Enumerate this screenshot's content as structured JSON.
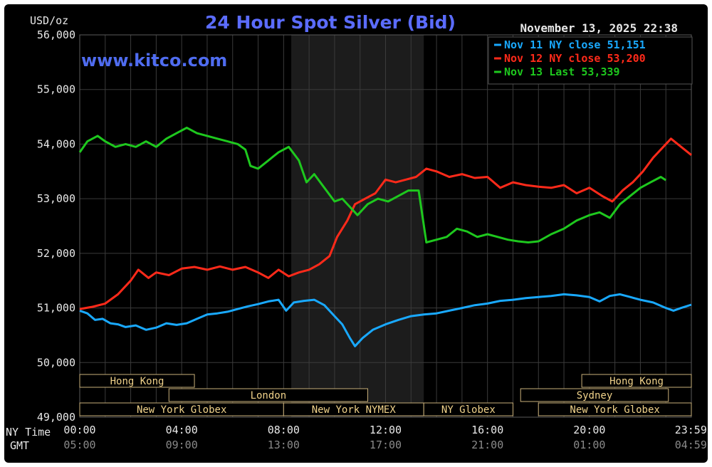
{
  "chart_data": {
    "type": "line",
    "title": "24 Hour Spot Silver (Bid)",
    "ylabel": "USD/oz",
    "watermark": "www.kitco.com",
    "timestamp": "November 13, 2025 22:38",
    "ylim": [
      49000,
      56000
    ],
    "yticks": [
      {
        "value": 49000,
        "label": "49,000"
      },
      {
        "value": 50000,
        "label": "50,000"
      },
      {
        "value": 51000,
        "label": "51,000"
      },
      {
        "value": 52000,
        "label": "52,000"
      },
      {
        "value": 53000,
        "label": "53,000"
      },
      {
        "value": 54000,
        "label": "54,000"
      },
      {
        "value": 55000,
        "label": "55,000"
      },
      {
        "value": 56000,
        "label": "56,000"
      }
    ],
    "xlim": [
      0,
      24
    ],
    "xticks": [
      {
        "hour": 0,
        "ny": "00:00",
        "gmt": "05:00"
      },
      {
        "hour": 4,
        "ny": "04:00",
        "gmt": "09:00"
      },
      {
        "hour": 8,
        "ny": "08:00",
        "gmt": "13:00"
      },
      {
        "hour": 12,
        "ny": "12:00",
        "gmt": "17:00"
      },
      {
        "hour": 16,
        "ny": "16:00",
        "gmt": "21:00"
      },
      {
        "hour": 20,
        "ny": "20:00",
        "gmt": "01:00"
      },
      {
        "hour": 23.98,
        "ny": "23:59",
        "gmt": "04:59"
      }
    ],
    "row_labels": {
      "ny": "NY Time",
      "gmt": "GMT"
    },
    "shaded_hours": [
      8.3,
      13.5
    ],
    "legend_position": "top-right",
    "sessions": [
      {
        "label": "Hong Kong",
        "start": 0,
        "end": 4.5,
        "row": 0
      },
      {
        "label": "Hong Kong",
        "start": 19.7,
        "end": 24,
        "row": 0
      },
      {
        "label": "London",
        "start": 3.5,
        "end": 11.3,
        "row": 1
      },
      {
        "label": "Sydney",
        "start": 17.3,
        "end": 23.1,
        "row": 1
      },
      {
        "label": "New York Globex",
        "start": 0,
        "end": 8.0,
        "row": 2
      },
      {
        "label": "New York NYMEX",
        "start": 8.0,
        "end": 13.5,
        "row": 2
      },
      {
        "label": "NY Globex",
        "start": 13.5,
        "end": 17.0,
        "row": 2
      },
      {
        "label": "New York Globex",
        "start": 18.0,
        "end": 24,
        "row": 2
      }
    ],
    "series": [
      {
        "name": "Nov 11 NY close 51,151",
        "color": "#19a9ff",
        "points": [
          [
            0,
            50950
          ],
          [
            0.3,
            50900
          ],
          [
            0.6,
            50780
          ],
          [
            0.9,
            50800
          ],
          [
            1.2,
            50720
          ],
          [
            1.5,
            50700
          ],
          [
            1.8,
            50650
          ],
          [
            2.2,
            50680
          ],
          [
            2.6,
            50600
          ],
          [
            3.0,
            50640
          ],
          [
            3.4,
            50720
          ],
          [
            3.8,
            50690
          ],
          [
            4.2,
            50720
          ],
          [
            4.6,
            50800
          ],
          [
            5.0,
            50880
          ],
          [
            5.4,
            50900
          ],
          [
            5.8,
            50930
          ],
          [
            6.2,
            50980
          ],
          [
            6.6,
            51030
          ],
          [
            7.0,
            51070
          ],
          [
            7.4,
            51120
          ],
          [
            7.8,
            51150
          ],
          [
            8.1,
            50950
          ],
          [
            8.4,
            51100
          ],
          [
            8.8,
            51130
          ],
          [
            9.2,
            51150
          ],
          [
            9.6,
            51050
          ],
          [
            10.0,
            50850
          ],
          [
            10.3,
            50700
          ],
          [
            10.6,
            50450
          ],
          [
            10.8,
            50300
          ],
          [
            11.1,
            50450
          ],
          [
            11.5,
            50600
          ],
          [
            12.0,
            50700
          ],
          [
            12.5,
            50780
          ],
          [
            13.0,
            50850
          ],
          [
            13.5,
            50880
          ],
          [
            14.0,
            50900
          ],
          [
            14.5,
            50950
          ],
          [
            15.0,
            51000
          ],
          [
            15.5,
            51050
          ],
          [
            16.0,
            51080
          ],
          [
            16.5,
            51130
          ],
          [
            17.0,
            51150
          ],
          [
            17.5,
            51180
          ],
          [
            18.0,
            51200
          ],
          [
            18.5,
            51220
          ],
          [
            19.0,
            51250
          ],
          [
            19.5,
            51230
          ],
          [
            20.0,
            51200
          ],
          [
            20.4,
            51120
          ],
          [
            20.8,
            51220
          ],
          [
            21.2,
            51250
          ],
          [
            21.6,
            51200
          ],
          [
            22.0,
            51150
          ],
          [
            22.5,
            51100
          ],
          [
            23.0,
            51000
          ],
          [
            23.3,
            50950
          ],
          [
            23.6,
            51000
          ],
          [
            24,
            51060
          ]
        ]
      },
      {
        "name": "Nov 12 NY close 53,200",
        "color": "#ff2a1a",
        "points": [
          [
            0,
            50980
          ],
          [
            0.5,
            51020
          ],
          [
            1.0,
            51080
          ],
          [
            1.5,
            51250
          ],
          [
            2.0,
            51500
          ],
          [
            2.3,
            51700
          ],
          [
            2.7,
            51550
          ],
          [
            3.0,
            51650
          ],
          [
            3.5,
            51600
          ],
          [
            4.0,
            51720
          ],
          [
            4.5,
            51750
          ],
          [
            5.0,
            51700
          ],
          [
            5.5,
            51760
          ],
          [
            6.0,
            51700
          ],
          [
            6.5,
            51750
          ],
          [
            7.0,
            51650
          ],
          [
            7.4,
            51550
          ],
          [
            7.8,
            51700
          ],
          [
            8.2,
            51580
          ],
          [
            8.6,
            51650
          ],
          [
            9.0,
            51700
          ],
          [
            9.4,
            51800
          ],
          [
            9.8,
            51950
          ],
          [
            10.1,
            52300
          ],
          [
            10.5,
            52600
          ],
          [
            10.8,
            52900
          ],
          [
            11.2,
            53000
          ],
          [
            11.6,
            53100
          ],
          [
            12.0,
            53350
          ],
          [
            12.4,
            53300
          ],
          [
            12.8,
            53350
          ],
          [
            13.2,
            53400
          ],
          [
            13.6,
            53550
          ],
          [
            14.0,
            53500
          ],
          [
            14.5,
            53400
          ],
          [
            15.0,
            53450
          ],
          [
            15.5,
            53380
          ],
          [
            16.0,
            53400
          ],
          [
            16.5,
            53200
          ],
          [
            17.0,
            53300
          ],
          [
            17.5,
            53250
          ],
          [
            18.0,
            53220
          ],
          [
            18.5,
            53200
          ],
          [
            19.0,
            53250
          ],
          [
            19.5,
            53100
          ],
          [
            20.0,
            53200
          ],
          [
            20.5,
            53050
          ],
          [
            20.9,
            52950
          ],
          [
            21.3,
            53150
          ],
          [
            21.7,
            53300
          ],
          [
            22.1,
            53500
          ],
          [
            22.5,
            53750
          ],
          [
            22.9,
            53950
          ],
          [
            23.2,
            54100
          ],
          [
            23.6,
            53950
          ],
          [
            24,
            53800
          ]
        ]
      },
      {
        "name": "Nov 13 Last 53,339",
        "color": "#1ec81e",
        "points": [
          [
            0,
            53850
          ],
          [
            0.3,
            54050
          ],
          [
            0.7,
            54150
          ],
          [
            1.0,
            54050
          ],
          [
            1.4,
            53950
          ],
          [
            1.8,
            54000
          ],
          [
            2.2,
            53950
          ],
          [
            2.6,
            54050
          ],
          [
            3.0,
            53950
          ],
          [
            3.4,
            54100
          ],
          [
            3.8,
            54200
          ],
          [
            4.2,
            54300
          ],
          [
            4.6,
            54200
          ],
          [
            5.0,
            54150
          ],
          [
            5.4,
            54100
          ],
          [
            5.8,
            54050
          ],
          [
            6.2,
            54000
          ],
          [
            6.5,
            53900
          ],
          [
            6.7,
            53600
          ],
          [
            7.0,
            53550
          ],
          [
            7.4,
            53700
          ],
          [
            7.8,
            53850
          ],
          [
            8.2,
            53950
          ],
          [
            8.6,
            53700
          ],
          [
            8.9,
            53300
          ],
          [
            9.2,
            53450
          ],
          [
            9.6,
            53200
          ],
          [
            10.0,
            52950
          ],
          [
            10.3,
            53000
          ],
          [
            10.6,
            52850
          ],
          [
            10.9,
            52700
          ],
          [
            11.3,
            52900
          ],
          [
            11.7,
            53000
          ],
          [
            12.1,
            52950
          ],
          [
            12.5,
            53050
          ],
          [
            12.9,
            53150
          ],
          [
            13.3,
            53150
          ],
          [
            13.6,
            52200
          ],
          [
            14.0,
            52250
          ],
          [
            14.4,
            52300
          ],
          [
            14.8,
            52450
          ],
          [
            15.2,
            52400
          ],
          [
            15.6,
            52300
          ],
          [
            16.0,
            52350
          ],
          [
            16.4,
            52300
          ],
          [
            16.8,
            52250
          ],
          [
            17.2,
            52220
          ],
          [
            17.6,
            52200
          ],
          [
            18.0,
            52220
          ],
          [
            18.5,
            52350
          ],
          [
            19.0,
            52450
          ],
          [
            19.5,
            52600
          ],
          [
            20.0,
            52700
          ],
          [
            20.4,
            52750
          ],
          [
            20.8,
            52650
          ],
          [
            21.2,
            52900
          ],
          [
            21.6,
            53050
          ],
          [
            22.0,
            53200
          ],
          [
            22.4,
            53300
          ],
          [
            22.8,
            53400
          ],
          [
            23.0,
            53339
          ]
        ]
      }
    ]
  }
}
